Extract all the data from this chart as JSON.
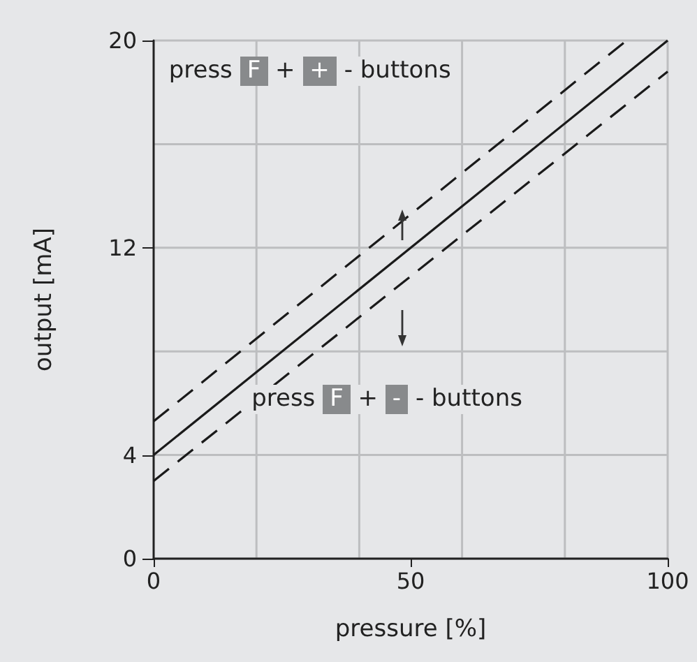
{
  "chart_data": {
    "type": "line",
    "xlabel": "pressure [%]",
    "ylabel": "output [mA]",
    "xlim": [
      0,
      100
    ],
    "ylim": [
      0,
      20
    ],
    "xticks": [
      0,
      {
        "value": 20,
        "label": null
      },
      {
        "value": 40,
        "label": null
      },
      50,
      {
        "value": 60,
        "label": null
      },
      {
        "value": 80,
        "label": null
      },
      100
    ],
    "yticks": [
      0,
      4,
      {
        "value": 8,
        "label": null
      },
      12,
      {
        "value": 16,
        "label": null
      },
      20
    ],
    "grid": true,
    "marker": "none",
    "series": [
      {
        "color": "#1a1a1a",
        "x": [
          0,
          100
        ],
        "values": [
          4,
          20
        ],
        "line_style": "solid"
      },
      {
        "color": "#1a1a1a",
        "x": [
          0,
          92
        ],
        "values": [
          5.3,
          20
        ],
        "line_style": "dashed"
      },
      {
        "color": "#1a1a1a",
        "x": [
          0,
          100
        ],
        "values": [
          3.0,
          18.8
        ],
        "line_style": "dashed"
      }
    ],
    "annotations": [
      "press F + + - buttons",
      "press F + - - buttons"
    ]
  }
}
